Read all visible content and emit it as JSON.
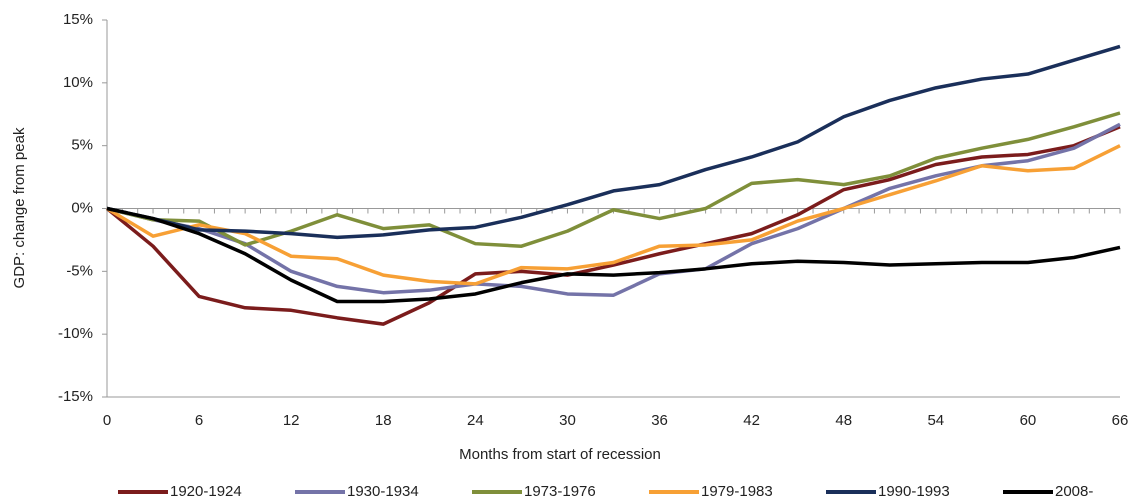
{
  "chart_data": {
    "type": "line",
    "x_label": "Months from start of recession",
    "y_label": "GDP: change from peak",
    "x": [
      0,
      3,
      6,
      9,
      12,
      15,
      18,
      21,
      24,
      27,
      30,
      33,
      36,
      39,
      42,
      45,
      48,
      51,
      54,
      57,
      60,
      63,
      66
    ],
    "xlim": [
      0,
      66
    ],
    "xticks": [
      0,
      6,
      12,
      18,
      24,
      30,
      36,
      42,
      48,
      54,
      60,
      66
    ],
    "ylim": [
      -15,
      15
    ],
    "yticks": [
      {
        "value": -15,
        "label": "-15%"
      },
      {
        "value": -10,
        "label": "-10%"
      },
      {
        "value": -5,
        "label": "-5%"
      },
      {
        "value": 0,
        "label": "0%"
      },
      {
        "value": 5,
        "label": "5%"
      },
      {
        "value": 10,
        "label": "10%"
      },
      {
        "value": 15,
        "label": "15%"
      }
    ],
    "legend": "bottom",
    "series": [
      {
        "name": "1920-1924",
        "color": "#7b1c1c",
        "values": [
          0,
          -3,
          -7,
          -7.9,
          -8.1,
          -8.7,
          -9.2,
          -7.5,
          -5.2,
          -5,
          -5.3,
          -4.5,
          -3.6,
          -2.8,
          -2,
          -0.5,
          1.5,
          2.3,
          3.5,
          4.1,
          4.3,
          5,
          6.5
        ]
      },
      {
        "name": "1930-1934",
        "color": "#7473a8",
        "values": [
          0,
          -0.9,
          -1.6,
          -2.8,
          -5,
          -6.2,
          -6.7,
          -6.5,
          -6,
          -6.2,
          -6.8,
          -6.9,
          -5.2,
          -4.8,
          -2.8,
          -1.6,
          0,
          1.6,
          2.6,
          3.4,
          3.8,
          4.8,
          6.7
        ]
      },
      {
        "name": "1973-1976",
        "color": "#7f8f3a",
        "values": [
          0,
          -0.9,
          -1,
          -2.9,
          -1.8,
          -0.5,
          -1.6,
          -1.3,
          -2.8,
          -3,
          -1.8,
          -0.1,
          -0.8,
          0,
          2,
          2.3,
          1.9,
          2.6,
          4,
          4.8,
          5.5,
          6.5,
          7.6
        ]
      },
      {
        "name": "1979-1983",
        "color": "#f7a035",
        "values": [
          0,
          -2.2,
          -1.3,
          -2,
          -3.8,
          -4,
          -5.3,
          -5.8,
          -6,
          -4.7,
          -4.8,
          -4.3,
          -3,
          -2.9,
          -2.5,
          -1,
          0,
          1.1,
          2.2,
          3.4,
          3,
          3.2,
          5
        ]
      },
      {
        "name": "1990-1993",
        "color": "#1a2f5a",
        "values": [
          0,
          -0.8,
          -1.7,
          -1.8,
          -2,
          -2.3,
          -2.1,
          -1.7,
          -1.5,
          -0.7,
          0.3,
          1.4,
          1.9,
          3.1,
          4.1,
          5.3,
          7.3,
          8.6,
          9.6,
          10.3,
          10.7,
          11.8,
          12.9
        ]
      },
      {
        "name": "2008-",
        "color": "#000000",
        "values": [
          0,
          -0.8,
          -2,
          -3.6,
          -5.7,
          -7.4,
          -7.4,
          -7.2,
          -6.8,
          -5.9,
          -5.2,
          -5.3,
          -5.1,
          -4.8,
          -4.4,
          -4.2,
          -4.3,
          -4.5,
          -4.4,
          -4.3,
          -4.3,
          -3.9,
          -3.1
        ]
      }
    ]
  }
}
